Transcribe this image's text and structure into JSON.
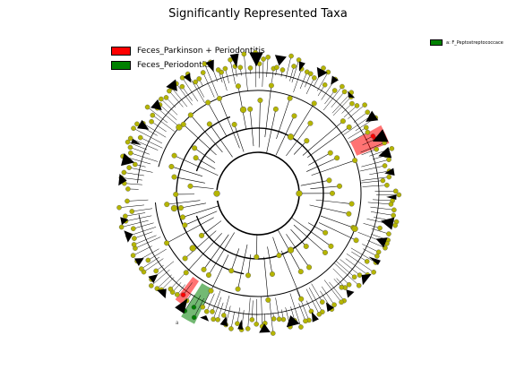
{
  "title": "Significantly Represented Taxa",
  "legend": {
    "items": [
      {
        "label": "Feces_Parkinson + Periodontitis",
        "color": "#ff0000"
      },
      {
        "label": "Feces_Periodontitis",
        "color": "#008000"
      }
    ]
  },
  "side_legend": {
    "label": "a: F_Peptostreptococcace",
    "color": "#008000"
  },
  "colors": {
    "node_default": "#b5b500",
    "node_red": "#ff0000",
    "node_green": "#008000",
    "edge": "#000000"
  },
  "highlight_label": "a"
}
